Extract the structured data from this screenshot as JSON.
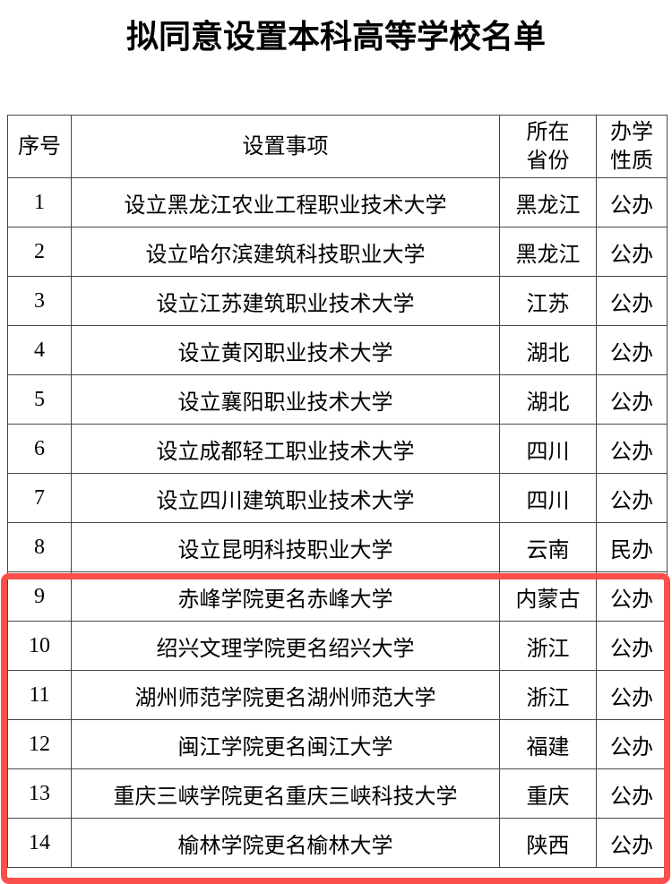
{
  "page": {
    "title": "拟同意设置本科高等学校名单"
  },
  "table": {
    "headers": [
      "序号",
      "设置事项",
      "所在\n省份",
      "办学\n性质"
    ],
    "rows": [
      {
        "no": "1",
        "item": "设立黑龙江农业工程职业技术大学",
        "province": "黑龙江",
        "nature": "公办",
        "highlighted": false
      },
      {
        "no": "2",
        "item": "设立哈尔滨建筑科技职业大学",
        "province": "黑龙江",
        "nature": "公办",
        "highlighted": false
      },
      {
        "no": "3",
        "item": "设立江苏建筑职业技术大学",
        "province": "江苏",
        "nature": "公办",
        "highlighted": false
      },
      {
        "no": "4",
        "item": "设立黄冈职业技术大学",
        "province": "湖北",
        "nature": "公办",
        "highlighted": false
      },
      {
        "no": "5",
        "item": "设立襄阳职业技术大学",
        "province": "湖北",
        "nature": "公办",
        "highlighted": false
      },
      {
        "no": "6",
        "item": "设立成都轻工职业技术大学",
        "province": "四川",
        "nature": "公办",
        "highlighted": false
      },
      {
        "no": "7",
        "item": "设立四川建筑职业技术大学",
        "province": "四川",
        "nature": "公办",
        "highlighted": false
      },
      {
        "no": "8",
        "item": "设立昆明科技职业大学",
        "province": "云南",
        "nature": "民办",
        "highlighted": false
      },
      {
        "no": "9",
        "item": "赤峰学院更名赤峰大学",
        "province": "内蒙古",
        "nature": "公办",
        "highlighted": true
      },
      {
        "no": "10",
        "item": "绍兴文理学院更名绍兴大学",
        "province": "浙江",
        "nature": "公办",
        "highlighted": true
      },
      {
        "no": "11",
        "item": "湖州师范学院更名湖州师范大学",
        "province": "浙江",
        "nature": "公办",
        "highlighted": true
      },
      {
        "no": "12",
        "item": "闽江学院更名闽江大学",
        "province": "福建",
        "nature": "公办",
        "highlighted": true
      },
      {
        "no": "13",
        "item": "重庆三峡学院更名重庆三峡科技大学",
        "province": "重庆",
        "nature": "公办",
        "highlighted": true
      },
      {
        "no": "14",
        "item": "榆林学院更名榆林大学",
        "province": "陕西",
        "nature": "公办",
        "highlighted": true
      }
    ]
  },
  "highlight": {
    "rows_from": 9,
    "rows_to": 14,
    "color": "#fa4f4b"
  },
  "colors": {
    "table_border": "#474747",
    "text": "#000000",
    "background": "#ffffff",
    "highlight_red": "#fa4f4b"
  }
}
